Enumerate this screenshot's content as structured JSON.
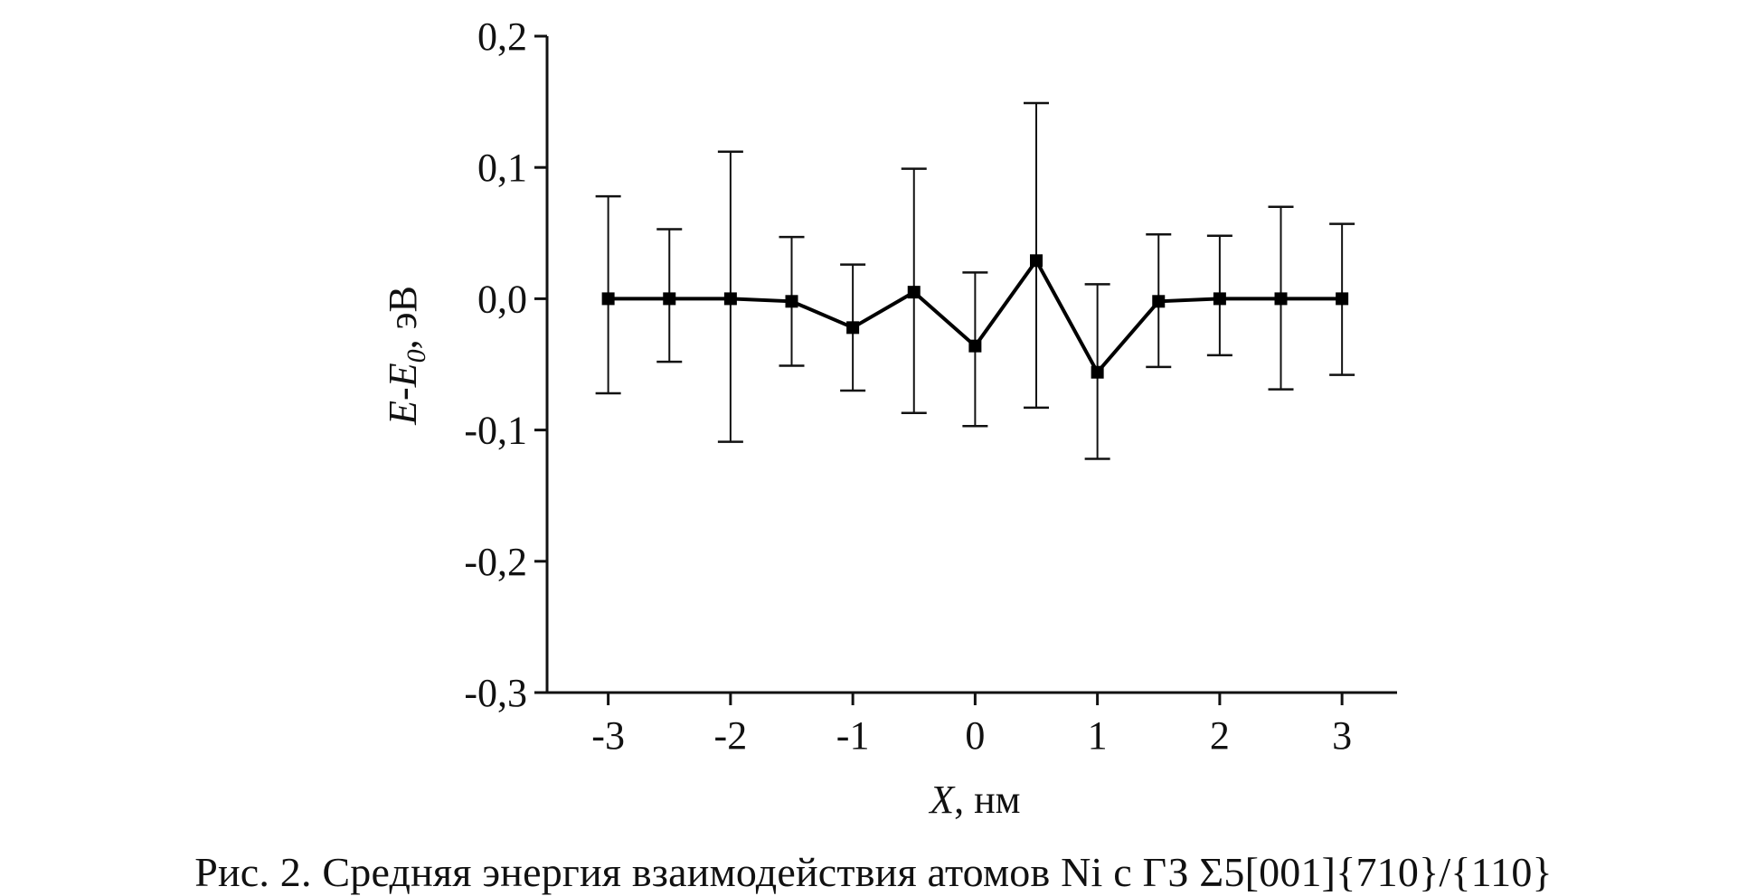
{
  "caption": "Рис. 2. Средняя энергия взаимодействия атомов Ni с ГЗ Σ5[001]{710}/{110}",
  "chart_data": {
    "type": "line",
    "x": [
      -3,
      -2.5,
      -2,
      -1.5,
      -1,
      -0.5,
      0,
      0.5,
      1,
      1.5,
      2,
      2.5,
      3
    ],
    "series": [
      {
        "values": [
          0.0,
          0.0,
          0.0,
          -0.002,
          -0.022,
          0.005,
          -0.036,
          0.029,
          -0.056,
          -0.002,
          0.0,
          0.0,
          0.0
        ],
        "err_low": [
          -0.072,
          -0.048,
          -0.109,
          -0.051,
          -0.07,
          -0.087,
          -0.097,
          -0.083,
          -0.122,
          -0.052,
          -0.043,
          -0.069,
          -0.058
        ],
        "err_high": [
          0.078,
          0.053,
          0.112,
          0.047,
          0.026,
          0.099,
          0.02,
          0.149,
          0.011,
          0.049,
          0.048,
          0.07,
          0.057
        ]
      }
    ],
    "xlim": [
      -3.5,
      3.45
    ],
    "ylim": [
      -0.3,
      0.2
    ],
    "xticks": [
      -3,
      -2,
      -1,
      0,
      1,
      2,
      3
    ],
    "xtick_labels": [
      "-3",
      "-2",
      "-1",
      "0",
      "1",
      "2",
      "3"
    ],
    "yticks": [
      -0.3,
      -0.2,
      -0.1,
      0.0,
      0.1,
      0.2
    ],
    "ytick_labels": [
      "-0,3",
      "-0,2",
      "-0,1",
      "0,0",
      "0,1",
      "0,2"
    ],
    "xlabel": {
      "var": "X",
      "unit": ", нм"
    },
    "ylabel": {
      "e": "E",
      "dash": "-",
      "e0": "E",
      "sub": "0",
      "unit": ", эВ"
    },
    "grid": false,
    "line_color": "#000000"
  }
}
